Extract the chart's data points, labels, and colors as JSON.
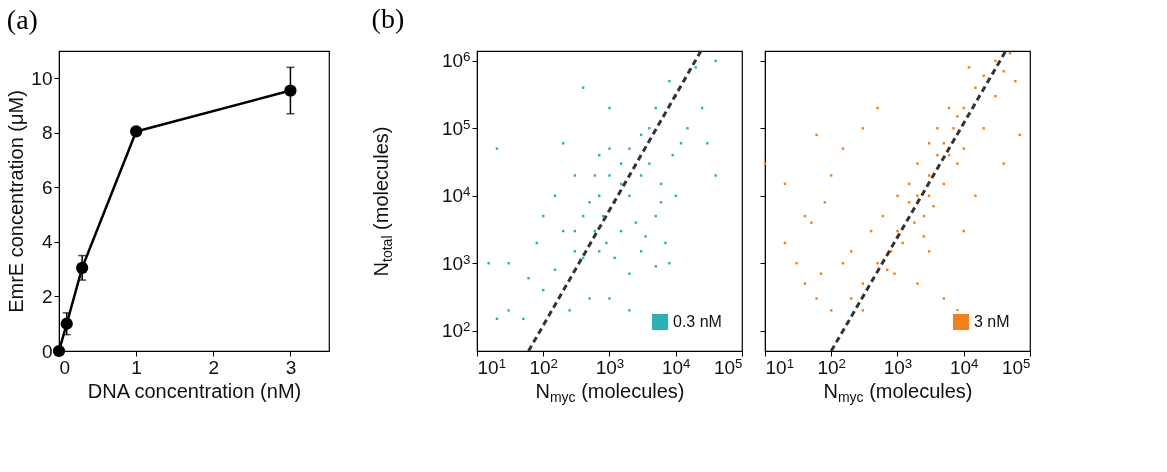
{
  "chart_data": [
    {
      "type": "line",
      "annotations": [
        "(a)"
      ],
      "xlabel": "DNA concentration (nM)",
      "ylabel": "EmrE concentration (μM)",
      "x": [
        0,
        0.1,
        0.3,
        1,
        3
      ],
      "values": [
        0,
        1.0,
        3.05,
        8.05,
        9.55
      ],
      "errors": [
        null,
        0.4,
        0.45,
        null,
        0.85
      ],
      "color": "#000000",
      "marker": "circle",
      "xlim": [
        0,
        3.5
      ],
      "ylim": [
        0,
        11
      ],
      "xticks": [
        0,
        1,
        2,
        3
      ],
      "yticks": [
        0,
        2,
        4,
        6,
        8,
        10
      ]
    },
    {
      "type": "scatter",
      "annotations": [
        "(b)"
      ],
      "xlabel": "N$_{myc}$ (molecules)",
      "ylabel": "N$_{total}$ (molecules)",
      "log": "xy",
      "legend": "bottom right",
      "xlim": [
        10,
        100000
      ],
      "ylim": [
        50,
        1400000
      ],
      "xticks": [
        {
          "value": 10,
          "label": "10$^{1}$"
        },
        {
          "value": 100,
          "label": "10$^{2}$"
        },
        {
          "value": 1000,
          "label": "10$^{3}$"
        },
        {
          "value": 10000,
          "label": "10$^{4}$"
        },
        {
          "value": 100000,
          "label": "10$^{5}$"
        }
      ],
      "yticks": [
        {
          "value": 100,
          "label": "10$^{2}$"
        },
        {
          "value": 1000,
          "label": "10$^{3}$"
        },
        {
          "value": 10000,
          "label": "10$^{4}$"
        },
        {
          "value": 100000,
          "label": "10$^{5}$"
        },
        {
          "value": 1000000,
          "label": "10$^{6}$"
        }
      ],
      "series": [
        {
          "name": "0.3 nM",
          "color": "#2fb0b0",
          "x": [
            500,
            700,
            800,
            1000,
            1200,
            1500,
            2000,
            3000,
            4000,
            5000,
            600,
            900,
            1500,
            2000,
            3000,
            400,
            300,
            700,
            1000,
            8000,
            10000,
            20000,
            15000,
            30000,
            40000,
            10000,
            7000,
            8000,
            5000,
            3000,
            2000,
            1000,
            500,
            300,
            200,
            150,
            100,
            50,
            30,
            20,
            15,
            20,
            80,
            150,
            200,
            400,
            1000,
            2000,
            4000,
            6000,
            12000,
            25000,
            40000,
            700,
            1200,
            2500,
            3500,
            6000,
            9000,
            1500,
            600,
            400,
            250,
            2000,
            5000,
            30,
            60,
            100,
            300
          ],
          "values": [
            8000,
            10000,
            5000,
            20000,
            8000,
            30000,
            50000,
            80000,
            100000,
            200000,
            3000,
            2000,
            3000,
            10000,
            20000,
            5000,
            3000,
            40000,
            50000,
            500000,
            300000,
            800000,
            100000,
            60000,
            20000,
            10000,
            2000,
            1000,
            5000,
            1500,
            700,
            300,
            300,
            1500,
            3000,
            800,
            400,
            150,
            200,
            150,
            1000,
            50000,
            2000,
            10000,
            60000,
            400000,
            200000,
            20000,
            30000,
            8000,
            60000,
            200000,
            1000000,
            1500,
            1200,
            4000,
            2500,
            15000,
            40000,
            15000,
            20000,
            1200,
            200,
            200,
            900,
            1000,
            600,
            5000,
            20000
          ]
        },
        {
          "type": "line",
          "color": "#333333",
          "line_style": "dashed",
          "x": [
            60,
            24000
          ],
          "values": [
            50,
            1400000
          ]
        }
      ]
    },
    {
      "type": "scatter",
      "tick_labels": "x",
      "xlabel": "N$_{myc}$ (molecules)",
      "log": "xy",
      "legend": "bottom right",
      "xlim": [
        10,
        100000
      ],
      "ylim": [
        50,
        1400000
      ],
      "xticks": [
        {
          "value": 10,
          "label": "10$^{1}$"
        },
        {
          "value": 100,
          "label": "10$^{2}$"
        },
        {
          "value": 1000,
          "label": "10$^{3}$"
        },
        {
          "value": 10000,
          "label": "10$^{4}$"
        },
        {
          "value": 100000,
          "label": "10$^{5}$"
        }
      ],
      "yticks": [
        100,
        1000,
        10000,
        100000,
        1000000
      ],
      "series": [
        {
          "name": "3 nM",
          "color": "#f0821e",
          "x": [
            1000,
            1500,
            2000,
            3000,
            4000,
            5000,
            7000,
            10000,
            15000,
            20000,
            30000,
            50000,
            40000,
            2500,
            3000,
            5000,
            8000,
            10000,
            6000,
            4000,
            3000,
            2000,
            1500,
            20000,
            30000,
            60000,
            1000,
            1200,
            800,
            500,
            300,
            200,
            100,
            60,
            40,
            30,
            20,
            40,
            50,
            80,
            100,
            150,
            300,
            500,
            60,
            20,
            10,
            200,
            400,
            600,
            700,
            2000,
            5000,
            8000,
            3000,
            10000,
            15000,
            40000,
            70000,
            12000,
            8000,
            6000,
            3500,
            2500,
            1800,
            900,
            300,
            150,
            70
          ],
          "values": [
            3000,
            8000,
            10000,
            20000,
            40000,
            60000,
            100000,
            200000,
            400000,
            600000,
            1000000,
            1300000,
            700000,
            5000,
            10000,
            15000,
            30000,
            50000,
            200000,
            100000,
            60000,
            30000,
            15000,
            100000,
            300000,
            500000,
            10000,
            2000,
            1500,
            1000,
            500,
            300,
            200,
            300,
            500,
            1000,
            2000,
            5000,
            4000,
            8000,
            20000,
            50000,
            100000,
            200000,
            80000,
            15000,
            30000,
            1500,
            3000,
            5000,
            800,
            500,
            300,
            200,
            1500,
            3000,
            10000,
            30000,
            80000,
            800000,
            150000,
            40000,
            7000,
            2500,
            4000,
            700,
            200,
            1000,
            700
          ]
        },
        {
          "type": "line",
          "color": "#333333",
          "line_style": "dashed",
          "x": [
            100,
            43000
          ],
          "values": [
            50,
            1400000
          ]
        }
      ]
    }
  ]
}
